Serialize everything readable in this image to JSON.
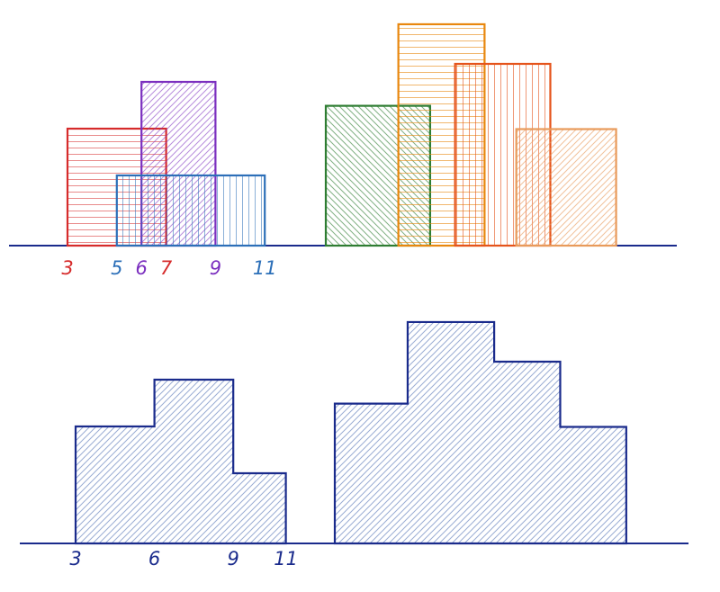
{
  "colors": {
    "red": "#d62b2b",
    "blue": "#2c6fb8",
    "purple": "#7b2fbf",
    "navy": "#1a2b8c",
    "green": "#2e7d32",
    "orange": "#e8870e",
    "dark_orange": "#e5541b",
    "peach": "#e89a5a",
    "merged_fill": "#8fa3cf"
  },
  "top_left": {
    "buildings": [
      {
        "color": "red",
        "hatch": "horizontal",
        "left": 3,
        "right": 7,
        "height": 5
      },
      {
        "color": "purple",
        "hatch": "diagonal",
        "left": 6,
        "right": 9,
        "height": 7
      },
      {
        "color": "blue",
        "hatch": "vertical",
        "left": 5,
        "right": 11,
        "height": 3
      }
    ],
    "axis_labels": [
      {
        "text": "3",
        "x": 3,
        "color": "red"
      },
      {
        "text": "5",
        "x": 5,
        "color": "blue"
      },
      {
        "text": "6",
        "x": 6,
        "color": "purple"
      },
      {
        "text": "7",
        "x": 7,
        "color": "red"
      },
      {
        "text": "9",
        "x": 9,
        "color": "purple"
      },
      {
        "text": "11",
        "x": 11,
        "color": "blue"
      }
    ]
  },
  "top_right": {
    "buildings": [
      {
        "color": "green",
        "hatch": "diagonal-down",
        "left": 0,
        "right": 4.6,
        "height": 6
      },
      {
        "color": "orange",
        "hatch": "horizontal",
        "left": 3.2,
        "right": 7,
        "height": 9.5
      },
      {
        "color": "dark_orange",
        "hatch": "vertical",
        "left": 5.7,
        "right": 9.9,
        "height": 7.8
      },
      {
        "color": "peach",
        "hatch": "diagonal",
        "left": 8.4,
        "right": 12.8,
        "height": 5
      }
    ]
  },
  "bottom_left": {
    "skyline": [
      [
        3,
        5
      ],
      [
        6,
        7
      ],
      [
        9,
        3
      ],
      [
        11,
        0
      ]
    ],
    "axis_labels": [
      {
        "text": "3",
        "x": 3
      },
      {
        "text": "6",
        "x": 6
      },
      {
        "text": "9",
        "x": 9
      },
      {
        "text": "11",
        "x": 11
      }
    ]
  },
  "bottom_right": {
    "skyline": [
      [
        0,
        6
      ],
      [
        3.2,
        9.5
      ],
      [
        7,
        7.8
      ],
      [
        9.9,
        5
      ],
      [
        12.8,
        0
      ]
    ]
  }
}
